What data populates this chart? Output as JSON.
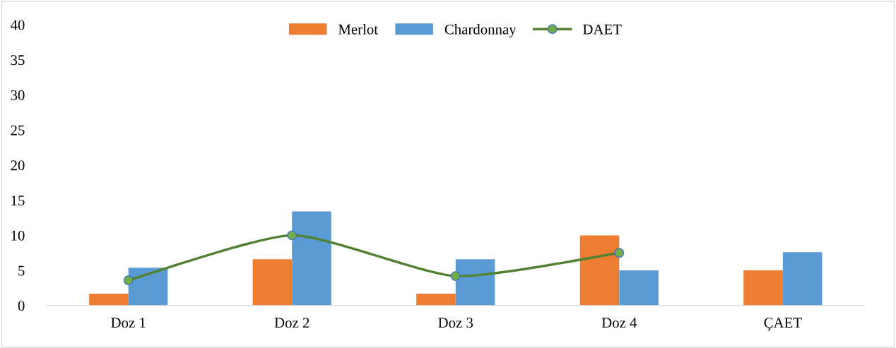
{
  "chart_data": {
    "type": "bar",
    "categories": [
      "Doz 1",
      "Doz 2",
      "Doz 3",
      "Doz 4",
      "ÇAET"
    ],
    "series": [
      {
        "name": "Merlot",
        "color": "#ed7d31",
        "values": [
          1.7,
          6.6,
          1.7,
          10.0,
          5.0
        ]
      },
      {
        "name": "Chardonnay",
        "color": "#5b9bd5",
        "values": [
          5.4,
          13.4,
          6.6,
          5.0,
          7.6
        ]
      },
      {
        "name": "DAET",
        "type": "line",
        "color": "#548235",
        "values": [
          3.6,
          10.0,
          4.2,
          7.5,
          null
        ]
      }
    ],
    "ylim": [
      0,
      40
    ],
    "yticks": [
      0,
      5,
      10,
      15,
      20,
      25,
      30,
      35,
      40
    ],
    "grid": false,
    "legend": "top",
    "marker": "circle"
  }
}
